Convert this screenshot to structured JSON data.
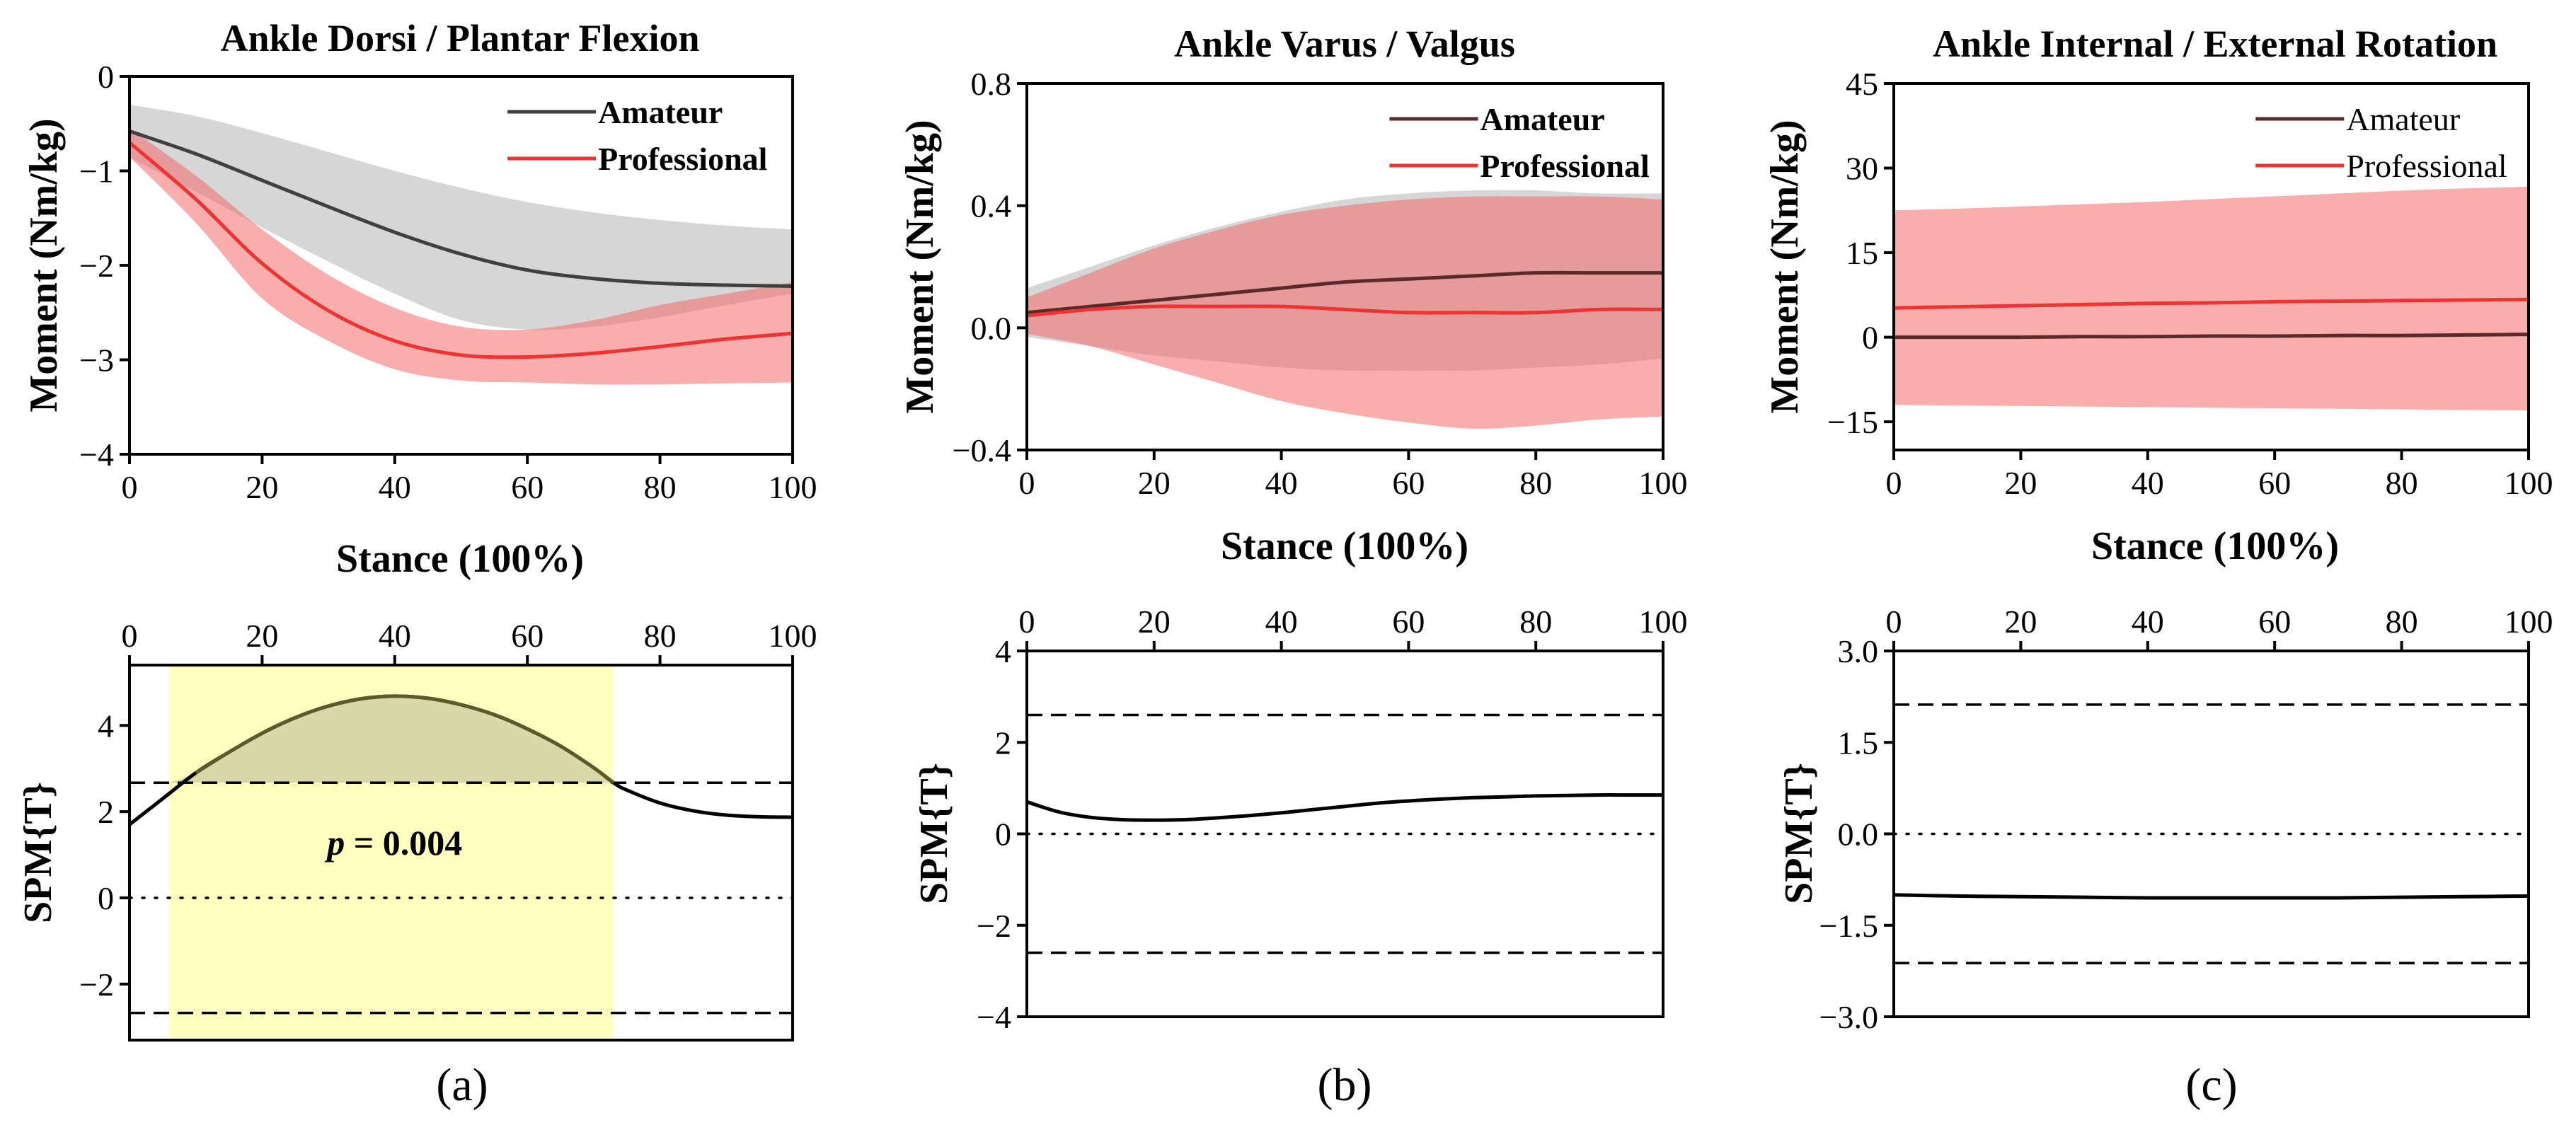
{
  "chart_data": [
    {
      "id": "a_top",
      "type": "line",
      "title": "Ankle Dorsi / Plantar Flexion",
      "xlabel": "Stance (100%)",
      "ylabel": "Moment (Nm/kg)",
      "xlim": [
        0,
        100
      ],
      "ylim": [
        -4,
        0
      ],
      "xticks": [
        0,
        20,
        40,
        60,
        80,
        100
      ],
      "yticks": [
        -4,
        -3,
        -2,
        -1,
        0
      ],
      "ytick_labels": [
        "−4",
        "−3",
        "−2",
        "−1",
        "0"
      ],
      "legend_bold": true,
      "x": [
        0,
        10,
        20,
        30,
        40,
        50,
        60,
        70,
        80,
        90,
        100
      ],
      "series": [
        {
          "name": "Amateur",
          "color": "#404040",
          "band_color": "#c8c8c8",
          "mean": [
            -0.58,
            -0.82,
            -1.1,
            -1.38,
            -1.65,
            -1.88,
            -2.05,
            -2.14,
            -2.19,
            -2.21,
            -2.22
          ],
          "upper": [
            -0.3,
            -0.42,
            -0.6,
            -0.8,
            -1.0,
            -1.18,
            -1.33,
            -1.44,
            -1.52,
            -1.58,
            -1.62
          ],
          "lower": [
            -0.86,
            -1.22,
            -1.6,
            -1.96,
            -2.3,
            -2.58,
            -2.68,
            -2.65,
            -2.55,
            -2.42,
            -2.3
          ]
        },
        {
          "name": "Professional",
          "color": "#ee3333",
          "band_color": "#f46a6a",
          "mean": [
            -0.7,
            -1.3,
            -1.98,
            -2.48,
            -2.8,
            -2.95,
            -2.97,
            -2.93,
            -2.86,
            -2.78,
            -2.72
          ],
          "upper": [
            -0.55,
            -1.05,
            -1.62,
            -2.1,
            -2.45,
            -2.65,
            -2.68,
            -2.58,
            -2.42,
            -2.3,
            -2.18
          ],
          "lower": [
            -0.85,
            -1.55,
            -2.35,
            -2.8,
            -3.1,
            -3.22,
            -3.24,
            -3.26,
            -3.26,
            -3.25,
            -3.24
          ]
        }
      ]
    },
    {
      "id": "b_top",
      "type": "line",
      "title": "Ankle Varus / Valgus",
      "xlabel": "Stance (100%)",
      "ylabel": "Moment (Nm/kg)",
      "xlim": [
        0,
        100
      ],
      "ylim": [
        -0.4,
        0.8
      ],
      "xticks": [
        0,
        20,
        40,
        60,
        80,
        100
      ],
      "yticks": [
        -0.4,
        0,
        0.4,
        0.8
      ],
      "ytick_labels": [
        "−0.4",
        "0.0",
        "0.4",
        "0.8"
      ],
      "legend_bold": true,
      "x": [
        0,
        10,
        20,
        30,
        40,
        50,
        60,
        70,
        80,
        90,
        100
      ],
      "series": [
        {
          "name": "Amateur",
          "color": "#5a2a2a",
          "band_color": "#c8c8c8",
          "mean": [
            0.05,
            0.07,
            0.09,
            0.11,
            0.13,
            0.15,
            0.16,
            0.17,
            0.18,
            0.18,
            0.18
          ],
          "upper": [
            0.13,
            0.2,
            0.27,
            0.33,
            0.38,
            0.42,
            0.44,
            0.45,
            0.45,
            0.44,
            0.44
          ],
          "lower": [
            -0.03,
            -0.06,
            -0.09,
            -0.11,
            -0.13,
            -0.14,
            -0.14,
            -0.14,
            -0.13,
            -0.12,
            -0.1
          ]
        },
        {
          "name": "Professional",
          "color": "#ee3333",
          "band_color": "#f46a6a",
          "mean": [
            0.04,
            0.06,
            0.07,
            0.07,
            0.07,
            0.06,
            0.05,
            0.05,
            0.05,
            0.06,
            0.06
          ],
          "upper": [
            0.1,
            0.18,
            0.26,
            0.32,
            0.37,
            0.4,
            0.42,
            0.43,
            0.43,
            0.43,
            0.42
          ],
          "lower": [
            -0.02,
            -0.06,
            -0.12,
            -0.18,
            -0.24,
            -0.28,
            -0.31,
            -0.33,
            -0.32,
            -0.3,
            -0.29
          ]
        }
      ]
    },
    {
      "id": "c_top",
      "type": "line",
      "title": "Ankle Internal / External Rotation",
      "xlabel": "Stance (100%)",
      "ylabel": "Moment (Nm/kg)",
      "xlim": [
        0,
        100
      ],
      "ylim": [
        -20,
        45
      ],
      "xticks": [
        0,
        20,
        40,
        60,
        80,
        100
      ],
      "yticks": [
        -15,
        0,
        15,
        30,
        45
      ],
      "ytick_labels": [
        "−15",
        "0",
        "15",
        "30",
        "45"
      ],
      "legend_bold": false,
      "x": [
        0,
        10,
        20,
        30,
        40,
        50,
        60,
        70,
        80,
        90,
        100
      ],
      "series": [
        {
          "name": "Amateur",
          "color": "#5a2a2a",
          "band_color": "#c8c8c8",
          "mean": [
            0,
            0,
            0,
            0.1,
            0.1,
            0.2,
            0.2,
            0.3,
            0.3,
            0.4,
            0.5
          ],
          "upper": [
            0.3,
            0.3,
            0.3,
            0.4,
            0.4,
            0.5,
            0.5,
            0.6,
            0.6,
            0.7,
            0.8
          ],
          "lower": [
            -0.3,
            -0.3,
            -0.3,
            -0.2,
            -0.2,
            -0.1,
            -0.1,
            0,
            0,
            0.1,
            0.2
          ]
        },
        {
          "name": "Professional",
          "color": "#ee3333",
          "band_color": "#f46a6a",
          "mean": [
            5.2,
            5.4,
            5.6,
            5.8,
            6.0,
            6.1,
            6.3,
            6.4,
            6.5,
            6.6,
            6.7
          ],
          "upper": [
            22.5,
            22.8,
            23.2,
            23.6,
            24.0,
            24.5,
            25.0,
            25.5,
            26.0,
            26.4,
            26.7
          ],
          "lower": [
            -12.0,
            -12.1,
            -12.2,
            -12.3,
            -12.4,
            -12.5,
            -12.6,
            -12.7,
            -12.8,
            -12.9,
            -13.0
          ]
        }
      ]
    },
    {
      "id": "a_spm",
      "type": "line",
      "ylabel": "SPM{T}",
      "xlim": [
        0,
        100
      ],
      "ylim": [
        -3.3,
        5.4
      ],
      "xticks": [
        0,
        20,
        40,
        60,
        80,
        100
      ],
      "yticks": [
        -2,
        0,
        2,
        4
      ],
      "ytick_labels": [
        "−2",
        "0",
        "2",
        "4"
      ],
      "threshold": 2.67,
      "suprathreshold_cluster": [
        6,
        73
      ],
      "annotation": {
        "p_prefix": "p",
        "p_rest": " = 0.004",
        "x": 40,
        "y": 1.3
      },
      "x": [
        0,
        5,
        10,
        15,
        20,
        25,
        30,
        35,
        40,
        45,
        50,
        55,
        60,
        65,
        70,
        73,
        75,
        80,
        85,
        90,
        95,
        100
      ],
      "y": [
        1.7,
        2.3,
        2.9,
        3.38,
        3.82,
        4.18,
        4.45,
        4.62,
        4.68,
        4.63,
        4.48,
        4.25,
        3.92,
        3.52,
        3.02,
        2.67,
        2.5,
        2.2,
        2.02,
        1.92,
        1.88,
        1.87
      ]
    },
    {
      "id": "b_spm",
      "type": "line",
      "ylabel": "SPM{T}",
      "xlim": [
        0,
        100
      ],
      "ylim": [
        -4,
        4
      ],
      "xticks": [
        0,
        20,
        40,
        60,
        80,
        100
      ],
      "yticks": [
        -4,
        -2,
        0,
        2,
        4
      ],
      "ytick_labels": [
        "−4",
        "−2",
        "0",
        "2",
        "4"
      ],
      "threshold": 2.6,
      "x": [
        0,
        5,
        10,
        15,
        20,
        25,
        30,
        35,
        40,
        45,
        50,
        55,
        60,
        65,
        70,
        75,
        80,
        85,
        90,
        95,
        100
      ],
      "y": [
        0.7,
        0.48,
        0.36,
        0.31,
        0.3,
        0.31,
        0.35,
        0.4,
        0.46,
        0.53,
        0.6,
        0.67,
        0.72,
        0.76,
        0.79,
        0.81,
        0.83,
        0.84,
        0.85,
        0.85,
        0.85
      ]
    },
    {
      "id": "c_spm",
      "type": "line",
      "ylabel": "SPM{T}",
      "xlim": [
        0,
        100
      ],
      "ylim": [
        -3,
        3
      ],
      "xticks": [
        0,
        20,
        40,
        60,
        80,
        100
      ],
      "yticks": [
        -3,
        -1.5,
        0,
        1.5,
        3
      ],
      "ytick_labels": [
        "−3.0",
        "−1.5",
        "0.0",
        "1.5",
        "3.0"
      ],
      "threshold": 2.12,
      "x": [
        0,
        10,
        20,
        30,
        40,
        50,
        60,
        70,
        80,
        90,
        100
      ],
      "y": [
        -1.0,
        -1.02,
        -1.03,
        -1.04,
        -1.05,
        -1.05,
        -1.05,
        -1.05,
        -1.04,
        -1.03,
        -1.02
      ]
    }
  ],
  "panel_labels": {
    "a": "(a)",
    "b": "(b)",
    "c": "(c)"
  },
  "colors": {
    "cluster_fill": "#ffffc0",
    "cluster_curve_fill": "#d8d8a8"
  }
}
